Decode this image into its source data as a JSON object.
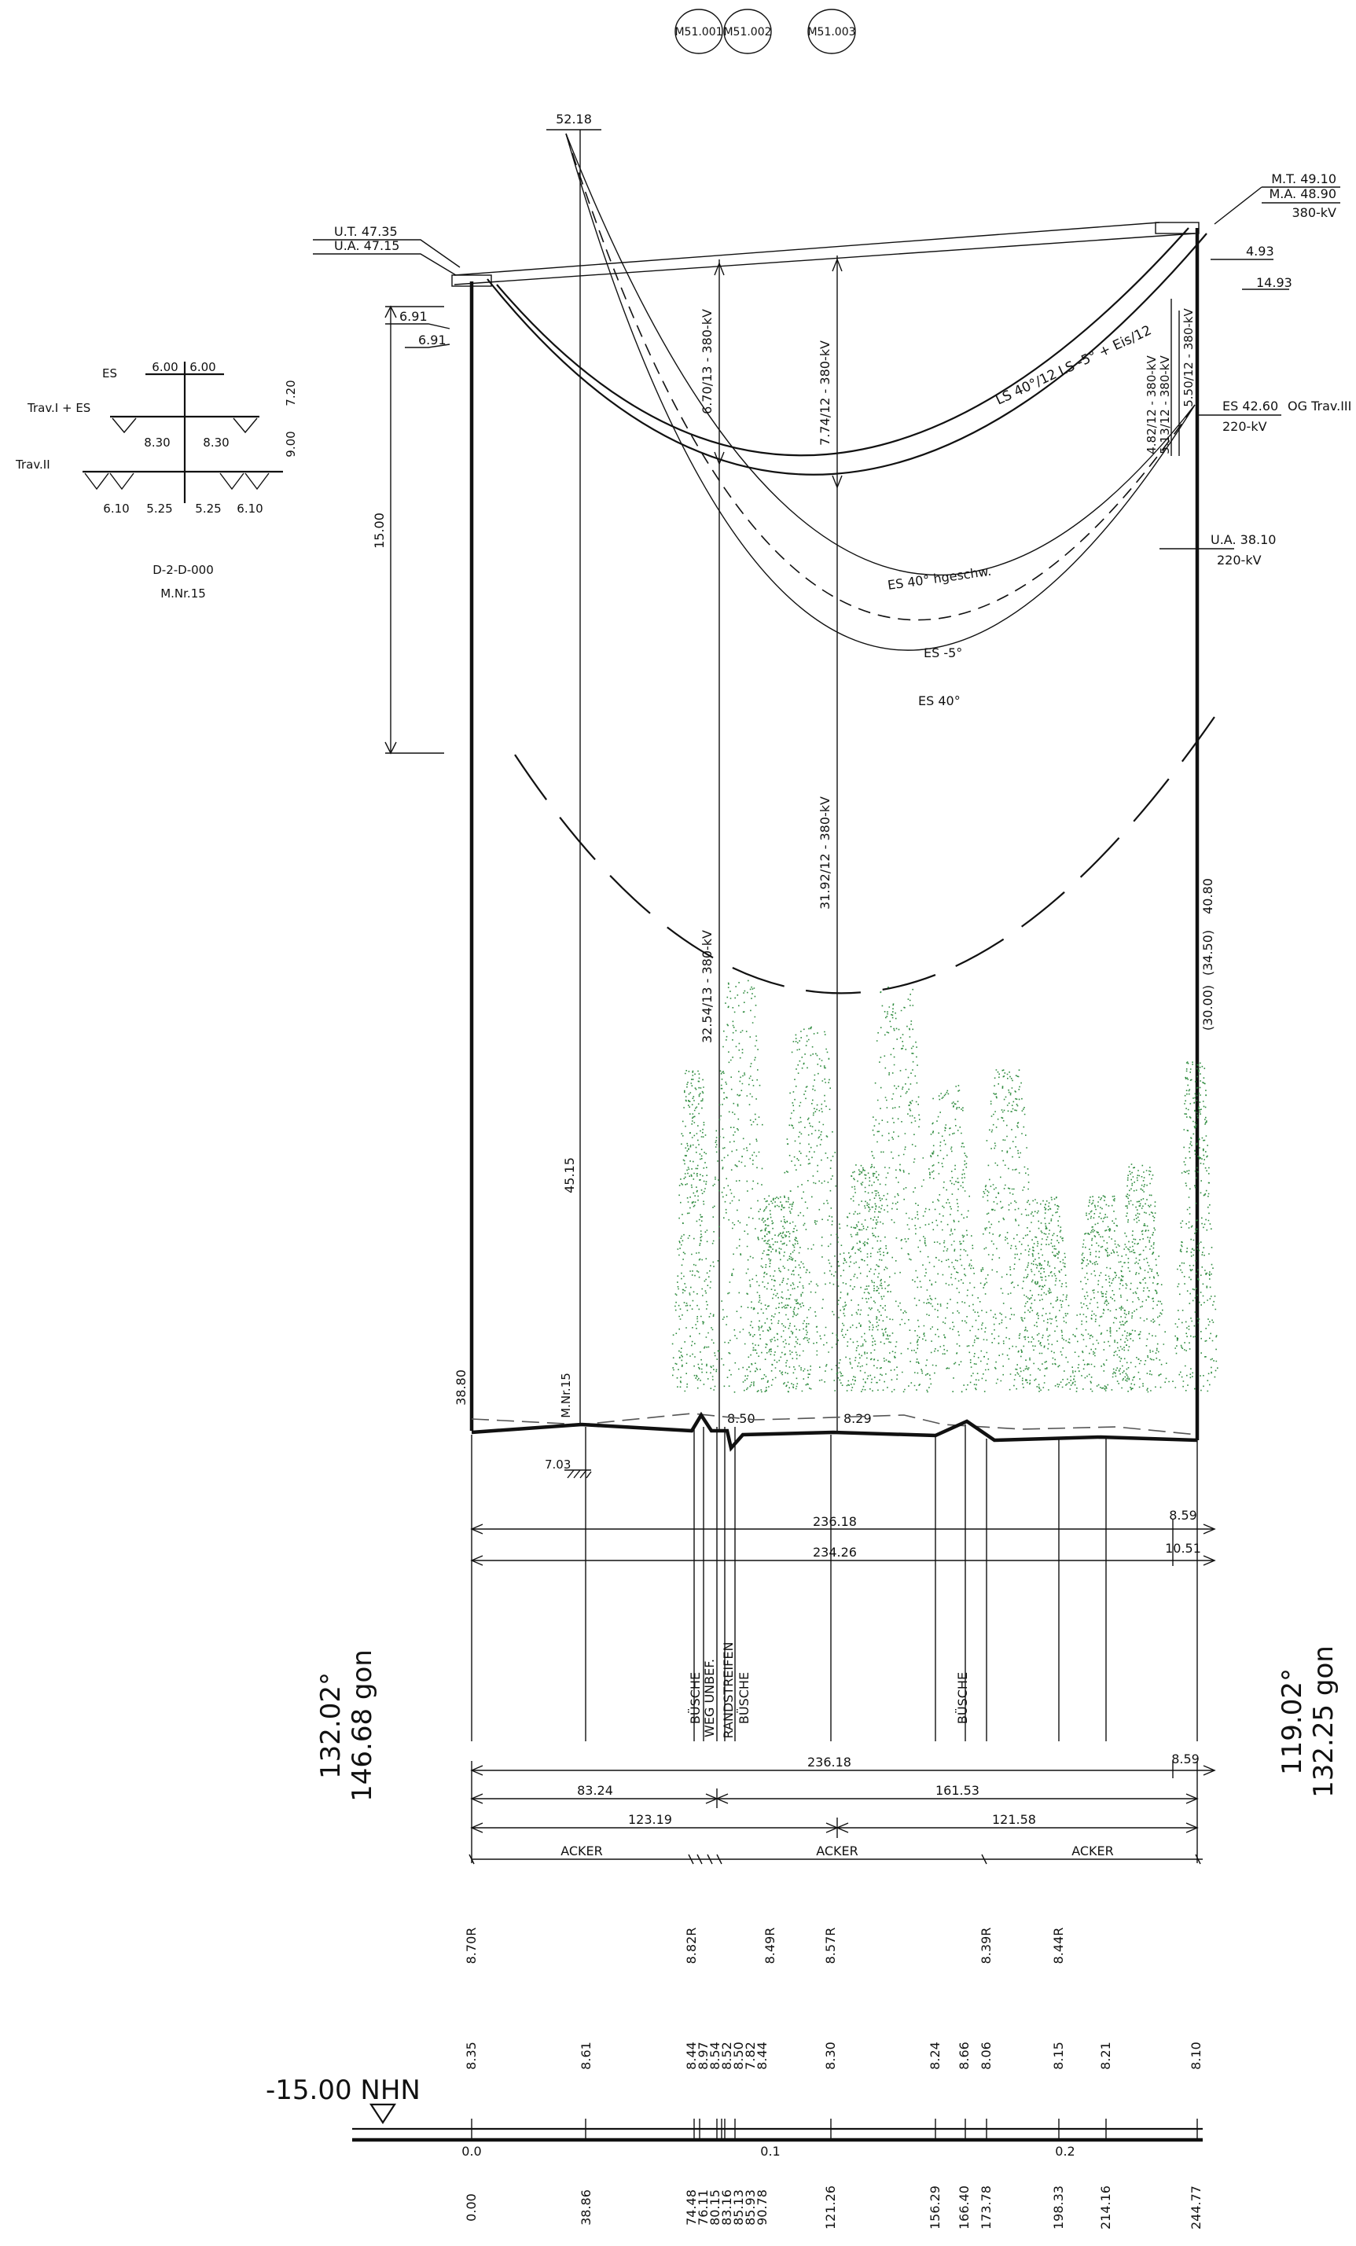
{
  "markers": [
    "M51.001",
    "M51.002",
    "M51.003"
  ],
  "span_top_value": "52.18",
  "left_tower": {
    "ut": "U.T. 47.35",
    "ua": "U.A. 47.15",
    "offset_1": "6.91",
    "offset_2": "6.91",
    "height_dim": "15.00",
    "ground_height": "38.80",
    "angle_deg": "132.02°",
    "angle_gon": "146.68 gon"
  },
  "right_tower": {
    "mt": "M.T. 49.10",
    "ma": "M.A. 48.90",
    "voltage": "380-kV",
    "dim_1": "4.93",
    "dim_2": "14.93",
    "es": "ES 42.60",
    "og": "OG Trav.III",
    "es_voltage": "220-kV",
    "ua": "U.A. 38.10",
    "ua_voltage": "220-kV",
    "h1": "40.80",
    "h2": "(34.50)",
    "h3": "(30.00)",
    "angle_deg": "119.02°",
    "angle_gon": "132.25 gon"
  },
  "tower_schematic": {
    "es_label": "ES",
    "es_left": "6.00",
    "es_right": "6.00",
    "trav1_label": "Trav.I + ES",
    "trav1_left": "8.30",
    "trav1_right": "8.30",
    "trav2_label": "Trav.II",
    "trav2_values": [
      "6.10",
      "5.25",
      "5.25",
      "6.10"
    ],
    "height_a": "7.20",
    "height_b": "9.00",
    "tower_type": "D-2-D-000",
    "mast_no": "M.Nr.15"
  },
  "curve_labels": {
    "ls40": "LS 40°/12",
    "ls_minus5": "LS -5° + Eis/12",
    "es40_hgeschw": "ES 40° hgeschw.",
    "es_minus5": "ES -5°",
    "es40": "ES 40°"
  },
  "clearances": {
    "c1": "6.70/13 - 380-kV",
    "c2": "7.74/12 - 380-kV",
    "c3": "4.82/12 - 380-kV",
    "c4": "5.13/12 - 380-kV",
    "c5": "5.50/12 - 380-kV",
    "c6": "31.92/12 - 380-kV",
    "c7": "32.54/13 - 380-kV",
    "mast_height": "45.15",
    "ground_a": "8.50",
    "ground_b": "8.29",
    "mast_label": "M.Nr.15",
    "mast_elev": "7.03"
  },
  "span_dims": {
    "d1": "236.18",
    "d1_right": "8.59",
    "d2": "234.26",
    "d2_right": "10.51"
  },
  "features": [
    "BÜSCHE",
    "WEG UNBEF.",
    "RANDSTREIFEN",
    "BÜSCHE",
    "BÜSCHE"
  ],
  "bottom_dims": {
    "total": "236.18",
    "total_right": "8.59",
    "a": "83.24",
    "b": "161.53",
    "c": "123.19",
    "d": "121.58"
  },
  "land_use": [
    "ACKER",
    "ACKER",
    "ACKER"
  ],
  "r_values": [
    "8.70R",
    "8.82R",
    "8.49R",
    "8.57R",
    "8.39R",
    "8.44R"
  ],
  "terrain_heights": [
    "8.35",
    "8.61",
    "8.44",
    "8.97",
    "8.54",
    "8.52",
    "8.50",
    "7.82",
    "8.44",
    "8.30",
    "8.24",
    "8.66",
    "8.06",
    "8.15",
    "8.21",
    "8.10"
  ],
  "datum": "-15.00 NHN",
  "km_ticks": [
    "0.0",
    "0.1",
    "0.2"
  ],
  "stations": [
    "0.00",
    "38.86",
    "74.48",
    "76.11",
    "80.15",
    "83.16",
    "85.13",
    "85.93",
    "90.78",
    "121.26",
    "156.29",
    "166.40",
    "173.78",
    "198.33",
    "214.16",
    "244.77"
  ],
  "colors": {
    "line": "#111111",
    "vegetation": "#2e8b3e"
  }
}
